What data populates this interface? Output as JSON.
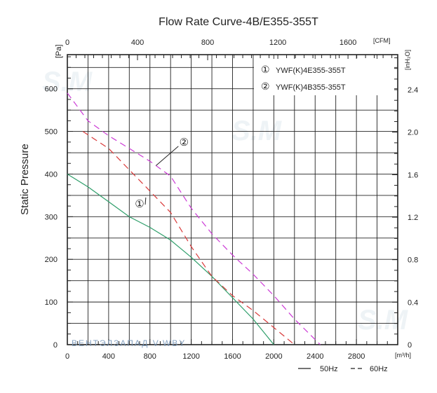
{
  "chart_data": {
    "type": "line",
    "title": "Flow Rate Curve-4B/E355-355T",
    "ylabel": "Static Pressure",
    "y_unit_left": "[Pa]",
    "y_unit_right": "[inH₂O]",
    "x_unit_bottom": "[m³/h]",
    "x_unit_top": "[CFM]",
    "xlim": [
      0,
      3200
    ],
    "ylim": [
      0,
      680
    ],
    "x_ticks": [
      0,
      400,
      800,
      1200,
      1600,
      2000,
      2400,
      2800
    ],
    "x_tick_labels": [
      "0",
      "400",
      "800",
      "1200",
      "1600",
      "2000",
      "2400",
      "2800"
    ],
    "y_ticks": [
      0,
      100,
      200,
      300,
      400,
      500,
      600
    ],
    "y_tick_labels": [
      "0",
      "100",
      "200",
      "300",
      "400",
      "500",
      "600"
    ],
    "top_ticks_cfm": [
      0,
      400,
      800,
      1200,
      1600
    ],
    "top_tick_labels": [
      "0",
      "400",
      "800",
      "1200",
      "1600"
    ],
    "right_ticks_inh2o": [
      0,
      0.4,
      0.8,
      1.2,
      1.6,
      2.0,
      2.4
    ],
    "right_tick_labels": [
      "0",
      "0.4",
      "0.8",
      "1.2",
      "1.6",
      "2.0",
      "2.4"
    ],
    "legend": [
      {
        "marker": "①",
        "label": "YWF(K)4E355-355T"
      },
      {
        "marker": "②",
        "label": "YWF(K)4B355-355T"
      }
    ],
    "line_style_legend": [
      {
        "style": "solid",
        "label": "50Hz"
      },
      {
        "style": "dashed",
        "label": "60Hz"
      }
    ],
    "annotations": [
      {
        "marker": "①",
        "x": 700,
        "y": 330
      },
      {
        "marker": "②",
        "x": 1130,
        "y": 475
      }
    ],
    "watermark": "ВЕНТЭЛЗАПАД    V.WBY",
    "series": [
      {
        "name": "1-50Hz",
        "model": "YWF(K)4E355-355T",
        "freq": "50Hz",
        "style": "solid",
        "color": "#2e9e6a",
        "x": [
          0,
          200,
          400,
          600,
          800,
          1000,
          1200,
          1400,
          1600,
          1800,
          2000
        ],
        "y": [
          400,
          370,
          335,
          300,
          275,
          245,
          205,
          160,
          110,
          60,
          0
        ]
      },
      {
        "name": "1-60Hz",
        "model": "YWF(K)4E355-355T",
        "freq": "60Hz",
        "style": "dashed",
        "color": "#d93a3a",
        "x": [
          150,
          400,
          600,
          800,
          1000,
          1200,
          1400,
          1600,
          1800,
          2000,
          2200
        ],
        "y": [
          500,
          460,
          410,
          360,
          310,
          230,
          160,
          115,
          80,
          40,
          0
        ]
      },
      {
        "name": "2-60Hz",
        "model": "YWF(K)4B355-355T",
        "freq": "60Hz",
        "style": "dashed",
        "color": "#cc3ad6",
        "x": [
          0,
          200,
          400,
          600,
          800,
          1000,
          1200,
          1400,
          1600,
          1800,
          2000,
          2200,
          2450
        ],
        "y": [
          590,
          525,
          490,
          460,
          430,
          395,
          320,
          260,
          210,
          165,
          115,
          60,
          0
        ]
      }
    ]
  }
}
